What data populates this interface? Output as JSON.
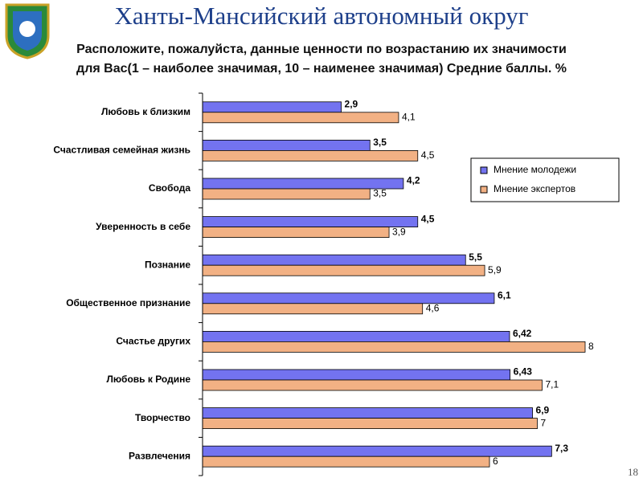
{
  "header": {
    "title": "Ханты-Мансийский автономный округ",
    "page_number": "18"
  },
  "chart_data": {
    "type": "barh",
    "title": "Расположите, пожалуйста, данные ценности по возрастанию их значимости для Вас(1 – наиболее значимая, 10 – наименее значимая) Средние баллы. %",
    "categories": [
      "Любовь к близким",
      "Счастливая семейная жизнь",
      "Свобода",
      "Уверенность в себе",
      "Познание",
      "Общественное признание",
      "Счастье других",
      "Любовь к Родине",
      "Творчество",
      "Развлечения"
    ],
    "series": [
      {
        "name": "Мнение молодежи",
        "color": "#7373f0",
        "values": [
          2.9,
          3.5,
          4.2,
          4.5,
          5.5,
          6.1,
          6.42,
          6.43,
          6.9,
          7.3
        ],
        "value_labels": [
          "2,9",
          "3,5",
          "4,2",
          "4,5",
          "5,5",
          "6,1",
          "6,42",
          "6,43",
          "6,9",
          "7,3"
        ]
      },
      {
        "name": "Мнение экспертов",
        "color": "#f2b184",
        "values": [
          4.1,
          4.5,
          3.5,
          3.9,
          5.9,
          4.6,
          8,
          7.1,
          7,
          6
        ],
        "value_labels": [
          "4,1",
          "4,5",
          "3,5",
          "3,9",
          "5,9",
          "4,6",
          "8",
          "7,1",
          "7",
          "6"
        ]
      }
    ]
  }
}
